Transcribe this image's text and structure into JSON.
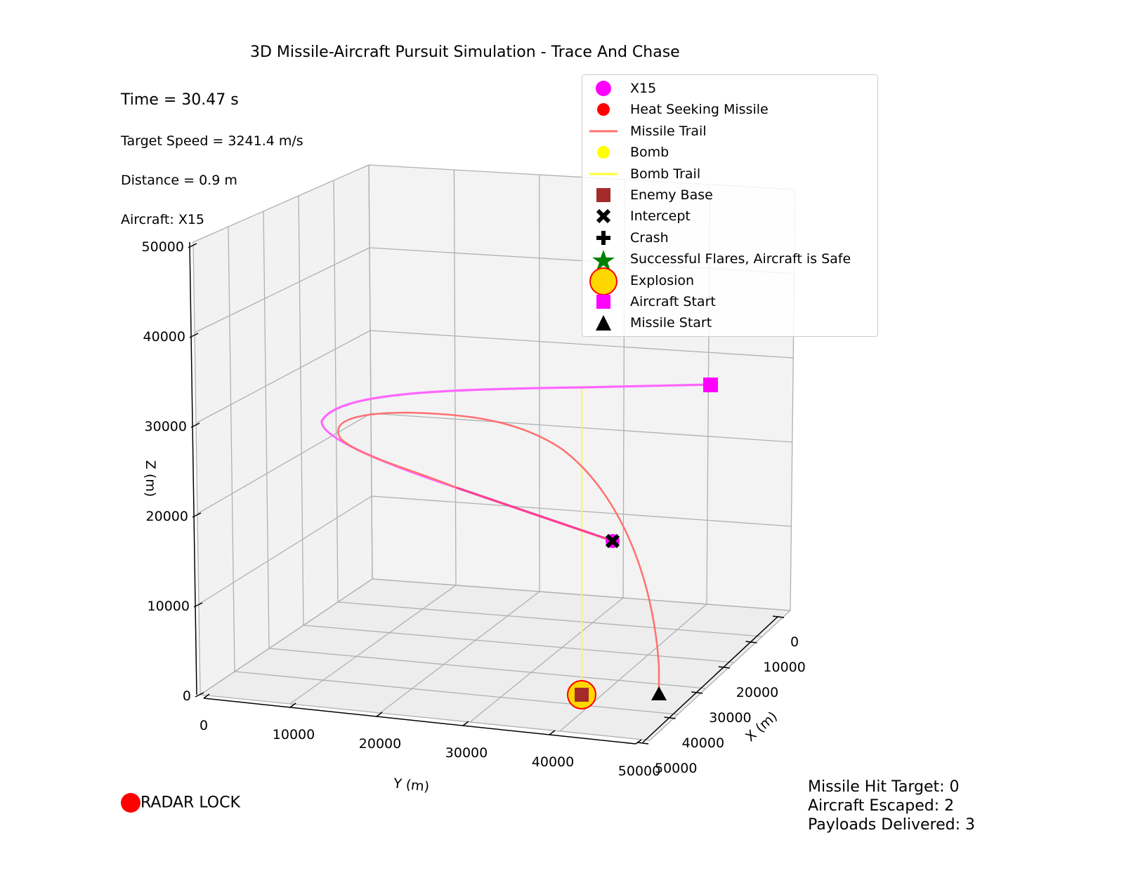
{
  "chart_data": {
    "type": "line",
    "title": "3D Missile-Aircraft Pursuit Simulation - Trace And Chase",
    "xlabel": "X (m)",
    "ylabel": "Y (m)",
    "zlabel": "Z (m)",
    "xlim": [
      0,
      50000
    ],
    "ylim": [
      0,
      50000
    ],
    "zlim": [
      0,
      50000
    ],
    "x_ticks": [
      "0",
      "10000",
      "20000",
      "30000",
      "40000",
      "50000"
    ],
    "y_ticks": [
      "0",
      "10000",
      "20000",
      "30000",
      "40000",
      "50000"
    ],
    "z_ticks": [
      "0",
      "10000",
      "20000",
      "30000",
      "40000",
      "50000"
    ],
    "grid": true,
    "legend_placement": "upper-right",
    "legend": [
      {
        "label": "X15",
        "marker": "circle",
        "color": "#ff00ff"
      },
      {
        "label": "Heat Seeking Missile",
        "marker": "circle",
        "color": "#ff0000"
      },
      {
        "label": "Missile Trail",
        "marker": "line",
        "color": "#ff7070"
      },
      {
        "label": "Bomb",
        "marker": "circle",
        "color": "#ffff00"
      },
      {
        "label": "Bomb Trail",
        "marker": "line",
        "color": "#ffff33"
      },
      {
        "label": "Enemy Base",
        "marker": "square",
        "color": "#a52a2a"
      },
      {
        "label": "Intercept",
        "marker": "x",
        "color": "#000000"
      },
      {
        "label": "Crash",
        "marker": "plus",
        "color": "#000000"
      },
      {
        "label": "Successful Flares, Aircraft is Safe",
        "marker": "star",
        "color": "#008000"
      },
      {
        "label": "Explosion",
        "marker": "circle",
        "color": "#ffd700"
      },
      {
        "label": "Aircraft Start",
        "marker": "square",
        "color": "#ff00ff"
      },
      {
        "label": "Missile Start",
        "marker": "triangle",
        "color": "#000000"
      }
    ],
    "series": [
      {
        "name": "X15",
        "color": "#ff00ff"
      },
      {
        "name": "Missile Trail",
        "color": "#ff7070"
      },
      {
        "name": "Bomb Trail",
        "color": "#ffff33"
      }
    ]
  },
  "info": {
    "time": "Time = 30.47 s",
    "speed": "Target Speed = 3241.4 m/s",
    "distance": "Distance = 0.9 m",
    "aircraft": "Aircraft: X15",
    "radar": "RADAR LOCK",
    "radar_color": "#ff0000"
  },
  "stats": {
    "hit": "Missile Hit Target: 0",
    "escaped": "Aircraft Escaped: 2",
    "payloads": "Payloads Delivered: 3"
  }
}
